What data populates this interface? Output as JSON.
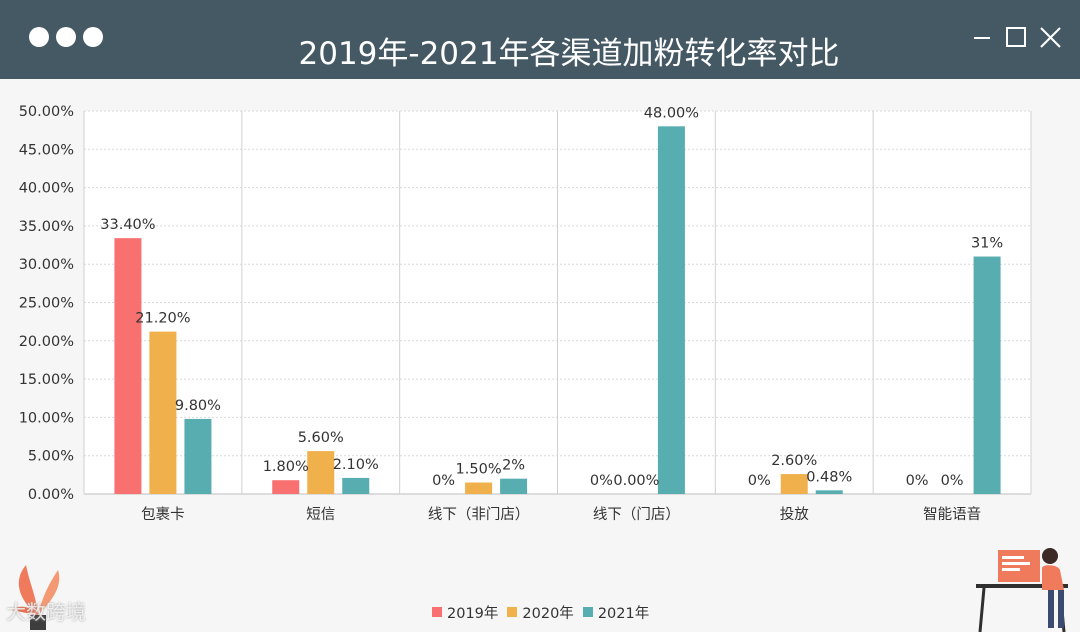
{
  "window": {
    "title": "2019年-2021年各渠道加粉转化率对比",
    "watermark": "大数跨境"
  },
  "colors": {
    "titlebar": "#455964",
    "background": "#f6f6f6",
    "series_2019": "#f87070",
    "series_2020": "#f0b04c",
    "series_2021": "#58adb1"
  },
  "chart_data": {
    "type": "bar",
    "title": "2019年-2021年各渠道加粉转化率对比",
    "categories": [
      "包裹卡",
      "短信",
      "线下（非门店）",
      "线下（门店）",
      "投放",
      "智能语音"
    ],
    "series": [
      {
        "name": "2019年",
        "color": "#f87070",
        "values": [
          33.4,
          1.8,
          0,
          null,
          0,
          0
        ],
        "labels": [
          "33.40%",
          "1.80%",
          "0%",
          "0%",
          "0%",
          "0%"
        ]
      },
      {
        "name": "2020年",
        "color": "#f0b04c",
        "values": [
          21.2,
          5.6,
          1.5,
          0,
          2.6,
          0
        ],
        "labels": [
          "21.20%",
          "5.60%",
          "1.50%",
          "0.00%",
          "2.60%",
          "0%"
        ]
      },
      {
        "name": "2021年",
        "color": "#58adb1",
        "values": [
          9.8,
          2.1,
          2,
          48,
          0.48,
          31
        ],
        "labels": [
          "9.80%",
          "2.10%",
          "2%",
          "48.00%",
          "0.48%",
          "31%"
        ]
      }
    ],
    "y_ticks": [
      "0.00%",
      "5.00%",
      "10.00%",
      "15.00%",
      "20.00%",
      "25.00%",
      "30.00%",
      "35.00%",
      "40.00%",
      "45.00%",
      "50.00%"
    ],
    "ylim": [
      0,
      50
    ],
    "grid": true,
    "legend_position": "bottom-center"
  }
}
